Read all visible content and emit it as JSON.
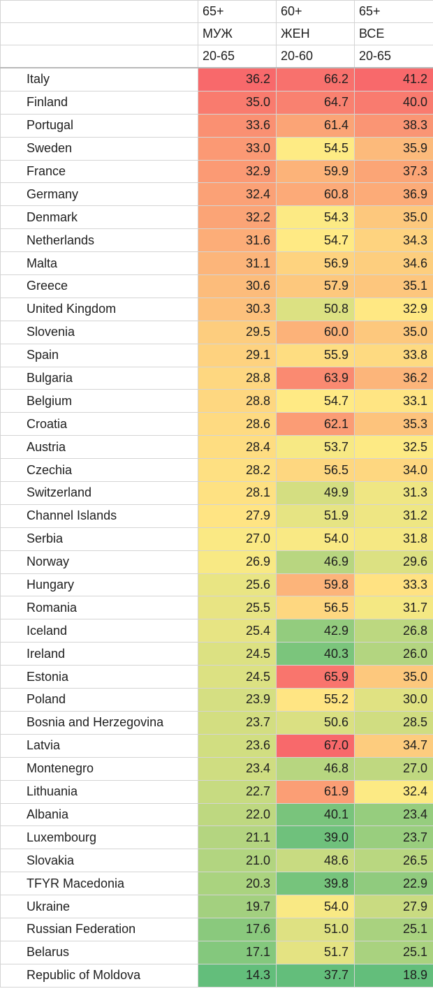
{
  "headers": [
    [
      "",
      "65+",
      "60+",
      "65+"
    ],
    [
      "",
      "МУЖ",
      "ЖЕН",
      "ВСЕ"
    ],
    [
      "",
      "20-65",
      "20-60",
      "20-65"
    ]
  ],
  "rows": [
    {
      "country": "Italy",
      "values": [
        "36.2",
        "66.2",
        "41.2"
      ]
    },
    {
      "country": "Finland",
      "values": [
        "35.0",
        "64.7",
        "40.0"
      ]
    },
    {
      "country": "Portugal",
      "values": [
        "33.6",
        "61.4",
        "38.3"
      ]
    },
    {
      "country": "Sweden",
      "values": [
        "33.0",
        "54.5",
        "35.9"
      ]
    },
    {
      "country": "France",
      "values": [
        "32.9",
        "59.9",
        "37.3"
      ]
    },
    {
      "country": "Germany",
      "values": [
        "32.4",
        "60.8",
        "36.9"
      ]
    },
    {
      "country": "Denmark",
      "values": [
        "32.2",
        "54.3",
        "35.0"
      ]
    },
    {
      "country": "Netherlands",
      "values": [
        "31.6",
        "54.7",
        "34.3"
      ]
    },
    {
      "country": "Malta",
      "values": [
        "31.1",
        "56.9",
        "34.6"
      ]
    },
    {
      "country": "Greece",
      "values": [
        "30.6",
        "57.9",
        "35.1"
      ]
    },
    {
      "country": "United Kingdom",
      "values": [
        "30.3",
        "50.8",
        "32.9"
      ]
    },
    {
      "country": "Slovenia",
      "values": [
        "29.5",
        "60.0",
        "35.0"
      ]
    },
    {
      "country": "Spain",
      "values": [
        "29.1",
        "55.9",
        "33.8"
      ]
    },
    {
      "country": "Bulgaria",
      "values": [
        "28.8",
        "63.9",
        "36.2"
      ]
    },
    {
      "country": "Belgium",
      "values": [
        "28.8",
        "54.7",
        "33.1"
      ]
    },
    {
      "country": "Croatia",
      "values": [
        "28.6",
        "62.1",
        "35.3"
      ]
    },
    {
      "country": "Austria",
      "values": [
        "28.4",
        "53.7",
        "32.5"
      ]
    },
    {
      "country": "Czechia",
      "values": [
        "28.2",
        "56.5",
        "34.0"
      ]
    },
    {
      "country": "Switzerland",
      "values": [
        "28.1",
        "49.9",
        "31.3"
      ]
    },
    {
      "country": "Channel Islands",
      "values": [
        "27.9",
        "51.9",
        "31.2"
      ]
    },
    {
      "country": "Serbia",
      "values": [
        "27.0",
        "54.0",
        "31.8"
      ]
    },
    {
      "country": "Norway",
      "values": [
        "26.9",
        "46.9",
        "29.6"
      ]
    },
    {
      "country": "Hungary",
      "values": [
        "25.6",
        "59.8",
        "33.3"
      ]
    },
    {
      "country": "Romania",
      "values": [
        "25.5",
        "56.5",
        "31.7"
      ]
    },
    {
      "country": "Iceland",
      "values": [
        "25.4",
        "42.9",
        "26.8"
      ]
    },
    {
      "country": "Ireland",
      "values": [
        "24.5",
        "40.3",
        "26.0"
      ]
    },
    {
      "country": "Estonia",
      "values": [
        "24.5",
        "65.9",
        "35.0"
      ]
    },
    {
      "country": "Poland",
      "values": [
        "23.9",
        "55.2",
        "30.0"
      ]
    },
    {
      "country": "Bosnia and Herzegovina",
      "values": [
        "23.7",
        "50.6",
        "28.5"
      ]
    },
    {
      "country": "Latvia",
      "values": [
        "23.6",
        "67.0",
        "34.7"
      ]
    },
    {
      "country": "Montenegro",
      "values": [
        "23.4",
        "46.8",
        "27.0"
      ]
    },
    {
      "country": "Lithuania",
      "values": [
        "22.7",
        "61.9",
        "32.4"
      ]
    },
    {
      "country": "Albania",
      "values": [
        "22.0",
        "40.1",
        "23.4"
      ]
    },
    {
      "country": "Luxembourg",
      "values": [
        "21.1",
        "39.0",
        "23.7"
      ]
    },
    {
      "country": "Slovakia",
      "values": [
        "21.0",
        "48.6",
        "26.5"
      ]
    },
    {
      "country": "TFYR Macedonia",
      "values": [
        "20.3",
        "39.8",
        "22.9"
      ]
    },
    {
      "country": "Ukraine",
      "values": [
        "19.7",
        "54.0",
        "27.9"
      ]
    },
    {
      "country": "Russian Federation",
      "values": [
        "17.6",
        "51.0",
        "25.1"
      ]
    },
    {
      "country": "Belarus",
      "values": [
        "17.1",
        "51.7",
        "25.1"
      ]
    },
    {
      "country": "Republic of Moldova",
      "values": [
        "14.3",
        "37.7",
        "18.9"
      ]
    }
  ],
  "color_scale": {
    "low": "#63be7b",
    "mid": "#ffeb84",
    "high": "#f8696b"
  }
}
